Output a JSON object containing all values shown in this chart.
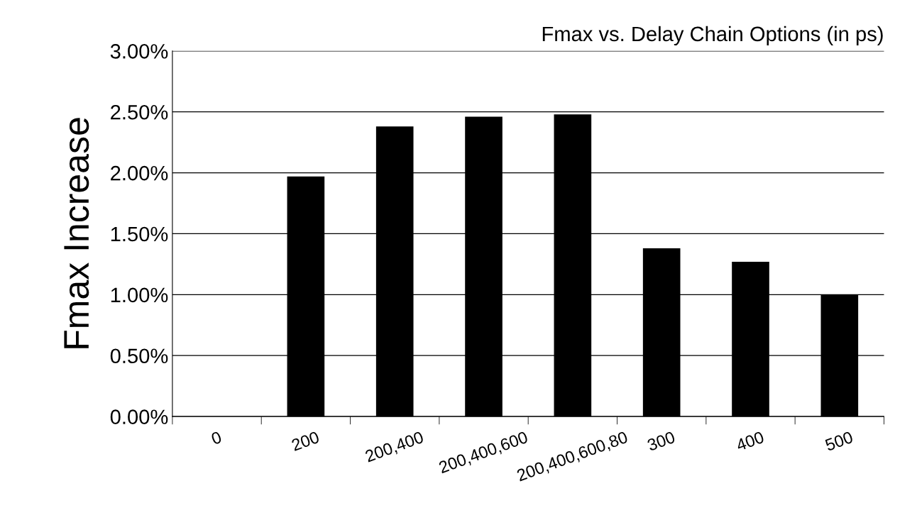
{
  "chart_data": {
    "type": "bar",
    "title": "Fmax vs. Delay Chain Options (in ps)",
    "ylabel": "Fmax Increase",
    "categories": [
      "0",
      "200",
      "200,400",
      "200,400,600",
      "200,400,600,80",
      "300",
      "400",
      "500"
    ],
    "values": [
      0,
      1.97,
      2.38,
      2.46,
      2.48,
      1.38,
      1.27,
      1.0
    ],
    "color": "#000000",
    "ylim": [
      0,
      3
    ],
    "yticks": [
      {
        "value": 0,
        "label": "0.00%"
      },
      {
        "value": 0.5,
        "label": "0.50%"
      },
      {
        "value": 1,
        "label": "1.00%"
      },
      {
        "value": 1.5,
        "label": "1.50%"
      },
      {
        "value": 2,
        "label": "2.00%"
      },
      {
        "value": 2.5,
        "label": "2.50%"
      },
      {
        "value": 3,
        "label": "3.00%"
      }
    ],
    "grid": "y",
    "legend": false
  }
}
